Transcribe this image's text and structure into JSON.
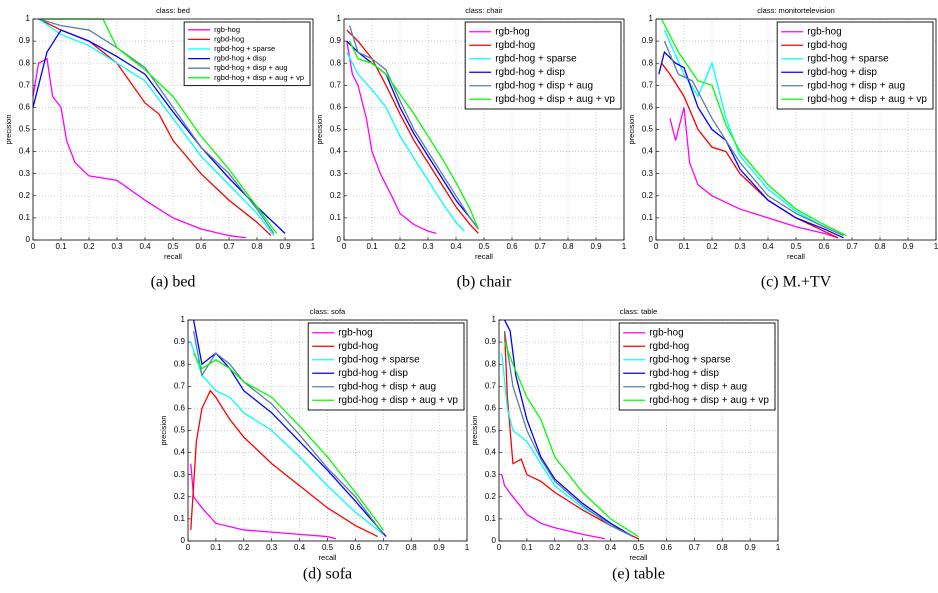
{
  "chart_data": [
    {
      "type": "line",
      "title": "class: bed",
      "caption": "(a) bed",
      "xlabel": "recall",
      "ylabel": "precision",
      "xlim": [
        0,
        1
      ],
      "ylim": [
        0,
        1
      ],
      "xticks": [
        0,
        0.1,
        0.2,
        0.3,
        0.4,
        0.5,
        0.6,
        0.7,
        0.8,
        0.9,
        1
      ],
      "yticks": [
        0,
        0.1,
        0.2,
        0.3,
        0.4,
        0.5,
        0.6,
        0.7,
        0.8,
        0.9,
        1
      ],
      "grid": true,
      "legend": "upper right",
      "series": [
        {
          "name": "rgb-hog",
          "color": "#ff00ff",
          "x": [
            0,
            0.02,
            0.05,
            0.07,
            0.1,
            0.12,
            0.15,
            0.2,
            0.3,
            0.4,
            0.5,
            0.6,
            0.7,
            0.76
          ],
          "values": [
            0.65,
            0.8,
            0.82,
            0.65,
            0.6,
            0.45,
            0.35,
            0.29,
            0.27,
            0.18,
            0.1,
            0.05,
            0.02,
            0.01
          ]
        },
        {
          "name": "rgbd-hog",
          "color": "#ff0000",
          "x": [
            0.02,
            0.1,
            0.2,
            0.3,
            0.4,
            0.45,
            0.5,
            0.6,
            0.7,
            0.8,
            0.85
          ],
          "values": [
            1,
            0.95,
            0.9,
            0.8,
            0.62,
            0.57,
            0.45,
            0.3,
            0.18,
            0.08,
            0.02
          ]
        },
        {
          "name": "rgbd-hog + sparse",
          "color": "#00ffff",
          "x": [
            0.02,
            0.1,
            0.2,
            0.3,
            0.4,
            0.5,
            0.6,
            0.7,
            0.8,
            0.86
          ],
          "values": [
            1,
            0.93,
            0.88,
            0.8,
            0.72,
            0.55,
            0.38,
            0.25,
            0.12,
            0.02
          ]
        },
        {
          "name": "rgbd-hog + disp",
          "color": "#0000ff",
          "x": [
            0,
            0.05,
            0.1,
            0.2,
            0.3,
            0.4,
            0.5,
            0.6,
            0.7,
            0.8,
            0.9
          ],
          "values": [
            0.6,
            0.85,
            0.95,
            0.9,
            0.83,
            0.75,
            0.58,
            0.42,
            0.28,
            0.15,
            0.03
          ]
        },
        {
          "name": "rgbd-hog + disp + aug",
          "color": "#5a7fa6",
          "x": [
            0.02,
            0.1,
            0.2,
            0.3,
            0.4,
            0.5,
            0.6,
            0.7,
            0.8,
            0.86
          ],
          "values": [
            1,
            0.97,
            0.95,
            0.87,
            0.78,
            0.6,
            0.42,
            0.3,
            0.14,
            0.03
          ]
        },
        {
          "name": "rgbd-hog + disp + aug + vp",
          "color": "#00ff00",
          "x": [
            0.03,
            0.25,
            0.3,
            0.4,
            0.5,
            0.6,
            0.7,
            0.8,
            0.87
          ],
          "values": [
            1,
            1,
            0.87,
            0.77,
            0.65,
            0.47,
            0.32,
            0.15,
            0.03
          ]
        }
      ]
    },
    {
      "type": "line",
      "title": "class: chair",
      "caption": "(b) chair",
      "xlabel": "recall",
      "ylabel": "precision",
      "xlim": [
        0,
        1
      ],
      "ylim": [
        0,
        1
      ],
      "xticks": [
        0,
        0.1,
        0.2,
        0.3,
        0.4,
        0.5,
        0.6,
        0.7,
        0.8,
        0.9,
        1
      ],
      "yticks": [
        0,
        0.1,
        0.2,
        0.3,
        0.4,
        0.5,
        0.6,
        0.7,
        0.8,
        0.9,
        1
      ],
      "grid": true,
      "legend": "upper right",
      "series": [
        {
          "name": "rgb-hog",
          "color": "#ff00ff",
          "x": [
            0.01,
            0.03,
            0.05,
            0.08,
            0.1,
            0.13,
            0.17,
            0.2,
            0.25,
            0.3,
            0.33
          ],
          "values": [
            0.9,
            0.75,
            0.7,
            0.55,
            0.4,
            0.3,
            0.2,
            0.12,
            0.07,
            0.04,
            0.03
          ]
        },
        {
          "name": "rgbd-hog",
          "color": "#ff0000",
          "x": [
            0.01,
            0.05,
            0.1,
            0.15,
            0.2,
            0.25,
            0.3,
            0.35,
            0.4,
            0.45,
            0.48
          ],
          "values": [
            0.95,
            0.9,
            0.82,
            0.7,
            0.57,
            0.45,
            0.35,
            0.25,
            0.15,
            0.07,
            0.03
          ]
        },
        {
          "name": "rgbd-hog + sparse",
          "color": "#00ffff",
          "x": [
            0.01,
            0.05,
            0.1,
            0.15,
            0.2,
            0.25,
            0.3,
            0.35,
            0.4,
            0.43
          ],
          "values": [
            0.85,
            0.75,
            0.68,
            0.6,
            0.47,
            0.37,
            0.27,
            0.17,
            0.08,
            0.04
          ]
        },
        {
          "name": "rgbd-hog + disp",
          "color": "#0000ff",
          "x": [
            0.01,
            0.05,
            0.1,
            0.15,
            0.2,
            0.25,
            0.3,
            0.35,
            0.4,
            0.45,
            0.48
          ],
          "values": [
            0.9,
            0.85,
            0.8,
            0.75,
            0.6,
            0.48,
            0.38,
            0.28,
            0.18,
            0.1,
            0.05
          ]
        },
        {
          "name": "rgbd-hog + disp + aug",
          "color": "#5a7fa6",
          "x": [
            0.02,
            0.05,
            0.1,
            0.15,
            0.2,
            0.25,
            0.3,
            0.35,
            0.4,
            0.45,
            0.48
          ],
          "values": [
            0.97,
            0.85,
            0.82,
            0.77,
            0.63,
            0.5,
            0.4,
            0.3,
            0.2,
            0.1,
            0.05
          ]
        },
        {
          "name": "rgbd-hog + disp + aug + vp",
          "color": "#00ff00",
          "x": [
            0.02,
            0.05,
            0.1,
            0.15,
            0.2,
            0.25,
            0.3,
            0.35,
            0.4,
            0.45,
            0.48
          ],
          "values": [
            0.9,
            0.82,
            0.8,
            0.75,
            0.66,
            0.57,
            0.47,
            0.37,
            0.26,
            0.14,
            0.05
          ]
        }
      ]
    },
    {
      "type": "line",
      "title": "class: monitortelevision",
      "caption": "(c) M.+TV",
      "xlabel": "recall",
      "ylabel": "precision",
      "xlim": [
        0,
        1
      ],
      "ylim": [
        0,
        1
      ],
      "xticks": [
        0,
        0.1,
        0.2,
        0.3,
        0.4,
        0.5,
        0.6,
        0.7,
        0.8,
        0.9,
        1
      ],
      "yticks": [
        0,
        0.1,
        0.2,
        0.3,
        0.4,
        0.5,
        0.6,
        0.7,
        0.8,
        0.9,
        1
      ],
      "grid": true,
      "legend": "upper right",
      "series": [
        {
          "name": "rgb-hog",
          "color": "#ff00ff",
          "x": [
            0.05,
            0.07,
            0.1,
            0.12,
            0.15,
            0.2,
            0.3,
            0.4,
            0.5,
            0.6,
            0.65
          ],
          "values": [
            0.55,
            0.45,
            0.6,
            0.35,
            0.25,
            0.2,
            0.14,
            0.1,
            0.06,
            0.03,
            0.01
          ]
        },
        {
          "name": "rgbd-hog",
          "color": "#ff0000",
          "x": [
            0.02,
            0.05,
            0.1,
            0.15,
            0.2,
            0.25,
            0.3,
            0.4,
            0.5,
            0.6,
            0.65
          ],
          "values": [
            0.8,
            0.75,
            0.65,
            0.5,
            0.42,
            0.4,
            0.3,
            0.18,
            0.1,
            0.04,
            0.01
          ]
        },
        {
          "name": "rgbd-hog + sparse",
          "color": "#00ffff",
          "x": [
            0.03,
            0.1,
            0.15,
            0.2,
            0.25,
            0.3,
            0.4,
            0.5,
            0.6,
            0.67
          ],
          "values": [
            0.95,
            0.75,
            0.65,
            0.8,
            0.55,
            0.38,
            0.23,
            0.13,
            0.06,
            0.02
          ]
        },
        {
          "name": "rgbd-hog + disp",
          "color": "#0000ff",
          "x": [
            0.01,
            0.03,
            0.07,
            0.1,
            0.15,
            0.2,
            0.25,
            0.3,
            0.4,
            0.5,
            0.6,
            0.67
          ],
          "values": [
            0.75,
            0.85,
            0.8,
            0.78,
            0.6,
            0.5,
            0.45,
            0.32,
            0.18,
            0.1,
            0.05,
            0.01
          ]
        },
        {
          "name": "rgbd-hog + disp + aug",
          "color": "#5a7fa6",
          "x": [
            0.03,
            0.08,
            0.13,
            0.2,
            0.25,
            0.3,
            0.4,
            0.5,
            0.6,
            0.67
          ],
          "values": [
            0.9,
            0.75,
            0.72,
            0.55,
            0.45,
            0.35,
            0.2,
            0.12,
            0.06,
            0.02
          ]
        },
        {
          "name": "rgbd-hog + disp + aug + vp",
          "color": "#00ff00",
          "x": [
            0.02,
            0.08,
            0.15,
            0.2,
            0.25,
            0.3,
            0.4,
            0.5,
            0.6,
            0.68
          ],
          "values": [
            1,
            0.85,
            0.72,
            0.7,
            0.52,
            0.4,
            0.25,
            0.14,
            0.07,
            0.02
          ]
        }
      ]
    },
    {
      "type": "line",
      "title": "class: sofa",
      "caption": "(d) sofa",
      "xlabel": "recall",
      "ylabel": "precision",
      "xlim": [
        0,
        1
      ],
      "ylim": [
        0,
        1
      ],
      "xticks": [
        0,
        0.1,
        0.2,
        0.3,
        0.4,
        0.5,
        0.6,
        0.7,
        0.8,
        0.9,
        1
      ],
      "yticks": [
        0,
        0.1,
        0.2,
        0.3,
        0.4,
        0.5,
        0.6,
        0.7,
        0.8,
        0.9,
        1
      ],
      "grid": true,
      "legend": "upper right",
      "series": [
        {
          "name": "rgb-hog",
          "color": "#ff00ff",
          "x": [
            0.01,
            0.02,
            0.05,
            0.1,
            0.2,
            0.3,
            0.4,
            0.5,
            0.53
          ],
          "values": [
            0.35,
            0.2,
            0.15,
            0.08,
            0.05,
            0.04,
            0.03,
            0.02,
            0.01
          ]
        },
        {
          "name": "rgbd-hog",
          "color": "#ff0000",
          "x": [
            0.01,
            0.03,
            0.05,
            0.08,
            0.1,
            0.15,
            0.2,
            0.3,
            0.4,
            0.5,
            0.6,
            0.68
          ],
          "values": [
            0.05,
            0.45,
            0.6,
            0.68,
            0.65,
            0.55,
            0.47,
            0.35,
            0.25,
            0.15,
            0.07,
            0.02
          ]
        },
        {
          "name": "rgbd-hog + sparse",
          "color": "#00ffff",
          "x": [
            0.01,
            0.05,
            0.1,
            0.15,
            0.2,
            0.3,
            0.4,
            0.5,
            0.6,
            0.7
          ],
          "values": [
            0.9,
            0.75,
            0.68,
            0.65,
            0.58,
            0.5,
            0.38,
            0.25,
            0.13,
            0.03
          ]
        },
        {
          "name": "rgbd-hog + disp",
          "color": "#0000ff",
          "x": [
            0.02,
            0.05,
            0.1,
            0.15,
            0.2,
            0.3,
            0.4,
            0.5,
            0.6,
            0.71
          ],
          "values": [
            1,
            0.8,
            0.85,
            0.78,
            0.68,
            0.58,
            0.45,
            0.32,
            0.18,
            0.02
          ]
        },
        {
          "name": "rgbd-hog + disp + aug",
          "color": "#5a7fa6",
          "x": [
            0.02,
            0.05,
            0.1,
            0.15,
            0.2,
            0.3,
            0.4,
            0.5,
            0.6,
            0.7
          ],
          "values": [
            0.95,
            0.75,
            0.85,
            0.8,
            0.72,
            0.62,
            0.48,
            0.33,
            0.2,
            0.03
          ]
        },
        {
          "name": "rgbd-hog + disp + aug + vp",
          "color": "#00ff00",
          "x": [
            0.02,
            0.05,
            0.1,
            0.15,
            0.2,
            0.3,
            0.4,
            0.5,
            0.6,
            0.7
          ],
          "values": [
            0.85,
            0.78,
            0.82,
            0.78,
            0.72,
            0.65,
            0.52,
            0.38,
            0.22,
            0.05
          ]
        }
      ]
    },
    {
      "type": "line",
      "title": "class: table",
      "caption": "(e) table",
      "xlabel": "recall",
      "ylabel": "precision",
      "xlim": [
        0,
        1
      ],
      "ylim": [
        0,
        1
      ],
      "xticks": [
        0,
        0.1,
        0.2,
        0.3,
        0.4,
        0.5,
        0.6,
        0.7,
        0.8,
        0.9,
        1
      ],
      "yticks": [
        0,
        0.1,
        0.2,
        0.3,
        0.4,
        0.5,
        0.6,
        0.7,
        0.8,
        0.9,
        1
      ],
      "grid": true,
      "legend": "upper right",
      "series": [
        {
          "name": "rgb-hog",
          "color": "#ff00ff",
          "x": [
            0.01,
            0.02,
            0.05,
            0.1,
            0.15,
            0.2,
            0.3,
            0.38
          ],
          "values": [
            0.3,
            0.25,
            0.2,
            0.12,
            0.08,
            0.06,
            0.03,
            0.01
          ]
        },
        {
          "name": "rgbd-hog",
          "color": "#ff0000",
          "x": [
            0.02,
            0.03,
            0.05,
            0.08,
            0.1,
            0.15,
            0.2,
            0.3,
            0.4,
            0.5
          ],
          "values": [
            0.95,
            0.65,
            0.35,
            0.37,
            0.3,
            0.27,
            0.22,
            0.14,
            0.07,
            0.01
          ]
        },
        {
          "name": "rgbd-hog + sparse",
          "color": "#00ffff",
          "x": [
            0.01,
            0.03,
            0.05,
            0.1,
            0.15,
            0.2,
            0.3,
            0.4,
            0.48
          ],
          "values": [
            0.85,
            0.6,
            0.5,
            0.45,
            0.35,
            0.25,
            0.15,
            0.08,
            0.02
          ]
        },
        {
          "name": "rgbd-hog + disp",
          "color": "#0000ff",
          "x": [
            0.02,
            0.04,
            0.06,
            0.1,
            0.15,
            0.2,
            0.3,
            0.4,
            0.48
          ],
          "values": [
            1,
            0.95,
            0.75,
            0.55,
            0.38,
            0.28,
            0.17,
            0.08,
            0.02
          ]
        },
        {
          "name": "rgbd-hog + disp + aug",
          "color": "#5a7fa6",
          "x": [
            0.02,
            0.05,
            0.1,
            0.15,
            0.2,
            0.3,
            0.4,
            0.48
          ],
          "values": [
            0.95,
            0.7,
            0.5,
            0.37,
            0.27,
            0.16,
            0.07,
            0.02
          ]
        },
        {
          "name": "rgbd-hog + disp + aug + vp",
          "color": "#00ff00",
          "x": [
            0.02,
            0.05,
            0.1,
            0.15,
            0.2,
            0.3,
            0.4,
            0.5
          ],
          "values": [
            0.9,
            0.8,
            0.65,
            0.55,
            0.38,
            0.22,
            0.1,
            0.02
          ]
        }
      ]
    }
  ]
}
